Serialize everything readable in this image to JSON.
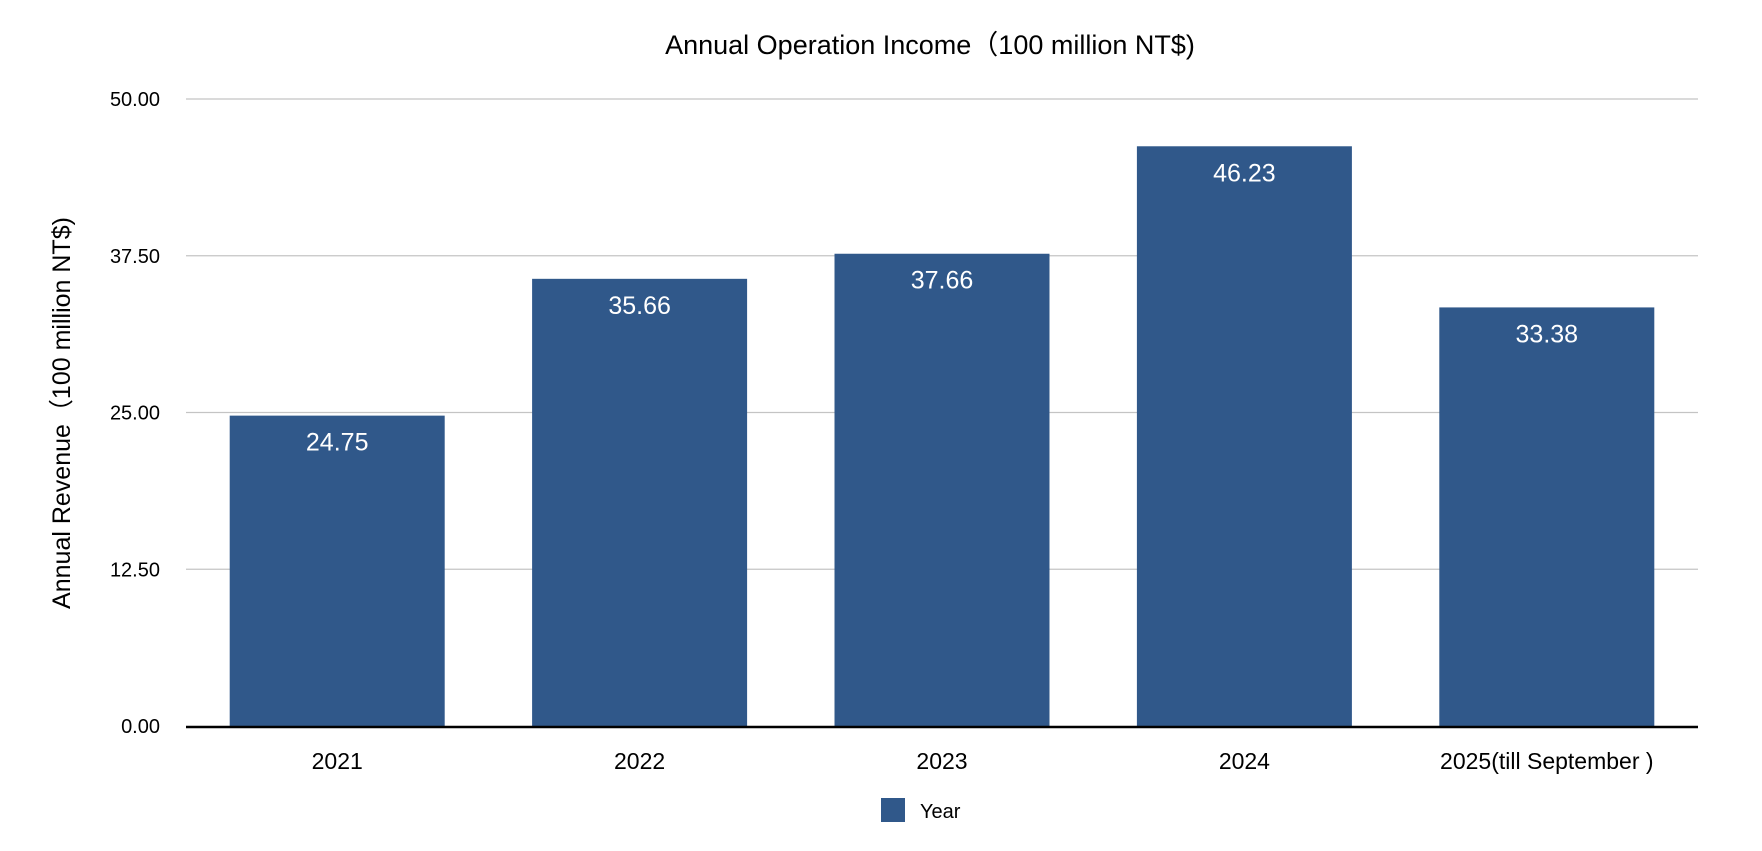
{
  "chart_data": {
    "type": "bar",
    "title": "Annual Operation Income（100 million NT$)",
    "xlabel": "",
    "ylabel": "Annual Revenue（100 million NT$)",
    "categories": [
      "2021",
      "2022",
      "2023",
      "2024",
      "2025(till September )"
    ],
    "series": [
      {
        "name": "Year",
        "values": [
          24.75,
          35.66,
          37.66,
          46.23,
          33.38
        ],
        "color": "#30588a"
      }
    ],
    "value_labels": [
      "24.75",
      "35.66",
      "37.66",
      "46.23",
      "33.38"
    ],
    "ylim": [
      0,
      50
    ],
    "yticks": [
      0,
      12.5,
      25,
      37.5,
      50
    ],
    "ytick_labels": [
      "0.00",
      "12.50",
      "25.00",
      "37.50",
      "50.00"
    ],
    "grid": true,
    "legend": {
      "position": "bottom-center",
      "entries": [
        "Year"
      ]
    }
  }
}
